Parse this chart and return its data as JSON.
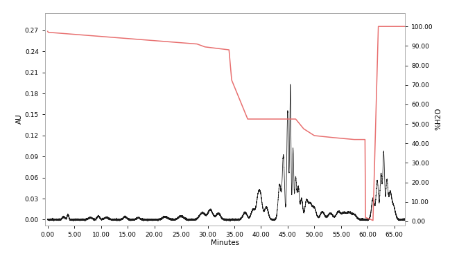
{
  "left_ylabel": "AU",
  "right_ylabel": "%H2O",
  "xlabel": "Minutes",
  "xlim": [
    -0.5,
    67
  ],
  "left_ylim": [
    -0.008,
    0.295
  ],
  "right_ylim": [
    -2.0,
    107
  ],
  "left_yticks": [
    0.0,
    0.03,
    0.06,
    0.09,
    0.12,
    0.15,
    0.18,
    0.21,
    0.24,
    0.27
  ],
  "right_yticks": [
    0.0,
    10.0,
    20.0,
    30.0,
    40.0,
    50.0,
    60.0,
    70.0,
    80.0,
    90.0,
    100.0
  ],
  "xticks": [
    0.0,
    5.0,
    10.0,
    15.0,
    20.0,
    25.0,
    30.0,
    35.0,
    40.0,
    45.0,
    50.0,
    55.0,
    60.0,
    65.0
  ],
  "gradient_color": "#e87070",
  "chromatogram_color": "#1a1a1a",
  "background_color": "#ffffff",
  "gradient_x": [
    0.0,
    0.1,
    28.0,
    29.5,
    34.0,
    34.5,
    37.5,
    38.0,
    41.5,
    46.5,
    48.0,
    50.0,
    53.5,
    57.5,
    58.0,
    59.5,
    59.6,
    61.0,
    62.0,
    62.5,
    67.0
  ],
  "gradient_y": [
    97.5,
    97.0,
    91.0,
    89.5,
    88.0,
    72.5,
    52.5,
    52.5,
    52.5,
    52.5,
    47.5,
    44.0,
    43.0,
    42.0,
    42.0,
    42.0,
    2.0,
    0.5,
    100.0,
    100.0,
    100.0
  ]
}
